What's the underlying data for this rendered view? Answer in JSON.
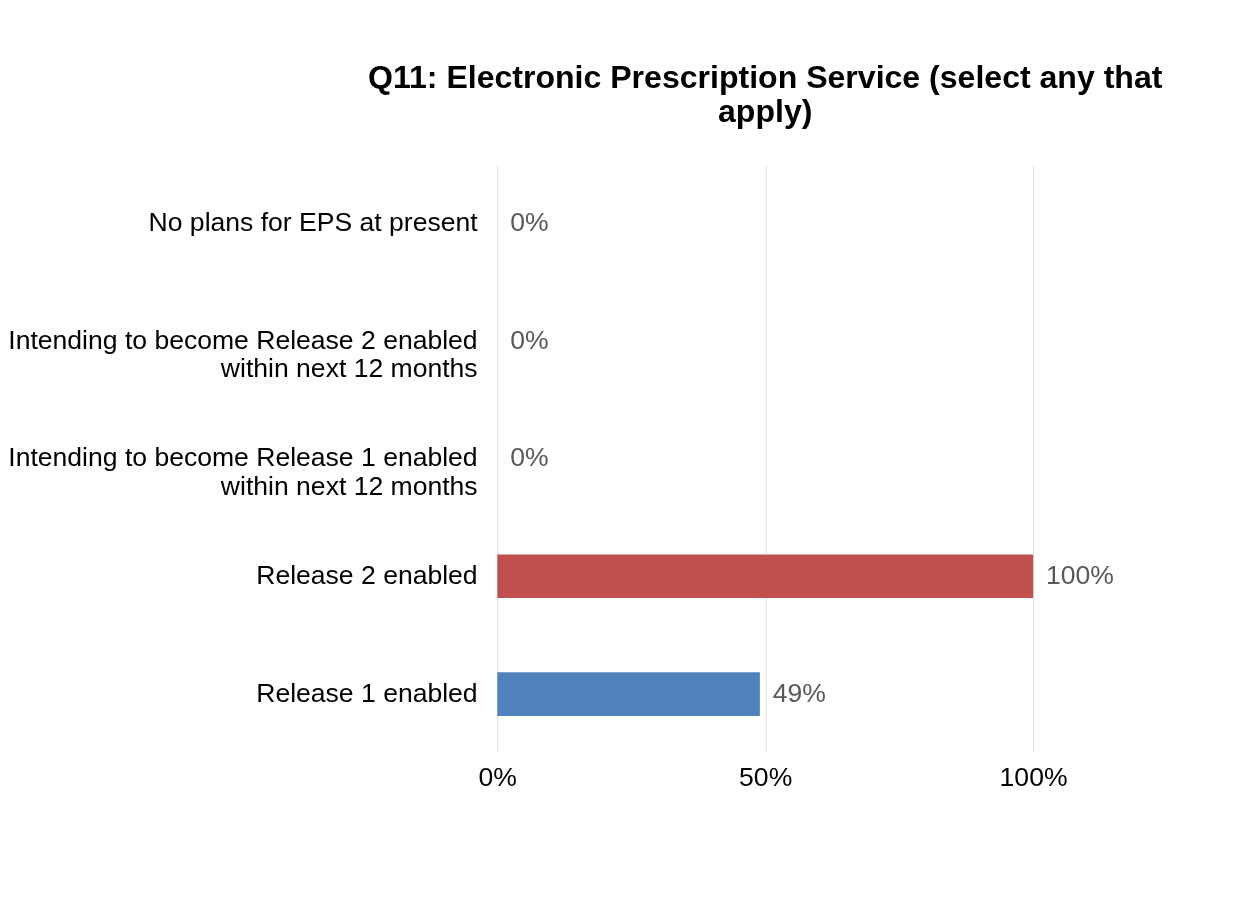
{
  "chart_data": {
    "type": "bar",
    "orientation": "horizontal",
    "title": "Q11: Electronic Prescription Service (select any that apply)",
    "categories": [
      "No plans for EPS at present",
      "Intending to become Release 2 enabled within next 12 months",
      "Intending to become Release 1 enabled within next 12 months",
      "Release 2 enabled",
      "Release 1 enabled"
    ],
    "values": [
      0,
      0,
      0,
      100,
      49
    ],
    "colors": [
      "#4f81bd",
      "#4f81bd",
      "#4f81bd",
      "#c0504d",
      "#4f81bd"
    ],
    "value_labels": [
      "0%",
      "0%",
      "0%",
      "100%",
      "49%"
    ],
    "xlim": [
      0,
      100
    ],
    "xticks": [
      {
        "value": 0,
        "label": "0%"
      },
      {
        "value": 50,
        "label": "50%"
      },
      {
        "value": 100,
        "label": "100%"
      }
    ],
    "grid": "x"
  }
}
